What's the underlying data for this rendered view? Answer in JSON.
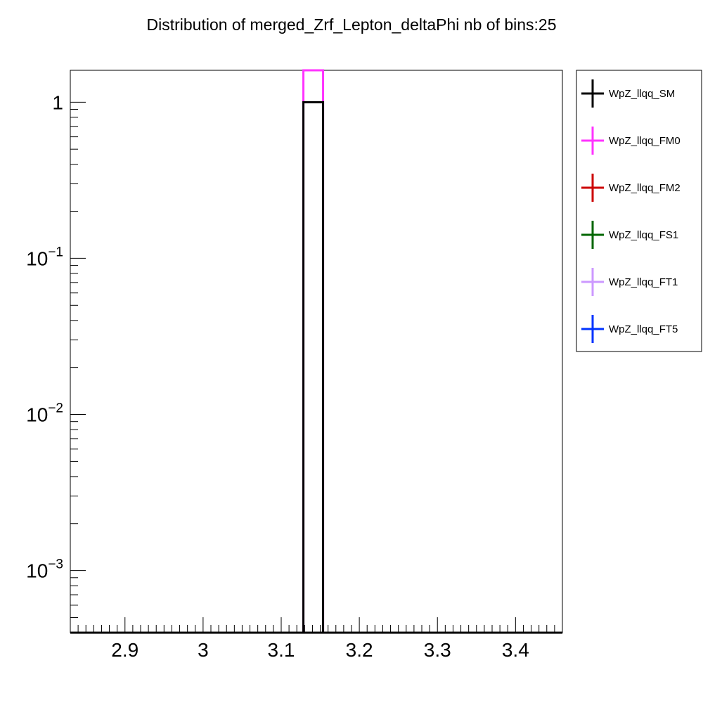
{
  "chart_data": {
    "type": "bar",
    "title": "Distribution of merged_Zrf_Lepton_deltaPhi nb of bins:25",
    "xlabel": "",
    "ylabel": "",
    "x_range": [
      2.83,
      3.46
    ],
    "y_scale": "log",
    "y_range": [
      0.0004,
      1.6
    ],
    "x_ticks": [
      2.9,
      3.0,
      3.1,
      3.2,
      3.3,
      3.4
    ],
    "x_tick_labels": [
      "2.9",
      "3",
      "3.1",
      "3.2",
      "3.3",
      "3.4"
    ],
    "y_ticks": [
      {
        "value": 1,
        "base": "1",
        "exp": ""
      },
      {
        "value": 0.1,
        "base": "10",
        "exp": "−1"
      },
      {
        "value": 0.01,
        "base": "10",
        "exp": "−2"
      },
      {
        "value": 0.001,
        "base": "10",
        "exp": "−3"
      }
    ],
    "bin": {
      "low": 3.1284,
      "high": 3.1536
    },
    "grid": false,
    "legend_position": "right",
    "series": [
      {
        "name": "WpZ_llqq_SM",
        "color": "#000000",
        "value": 1.0
      },
      {
        "name": "WpZ_llqq_FM0",
        "color": "#ff33ff",
        "value": 1.6
      },
      {
        "name": "WpZ_llqq_FM2",
        "color": "#cc0000",
        "value": null
      },
      {
        "name": "WpZ_llqq_FS1",
        "color": "#006600",
        "value": null
      },
      {
        "name": "WpZ_llqq_FT1",
        "color": "#cc99ff",
        "value": null
      },
      {
        "name": "WpZ_llqq_FT5",
        "color": "#0033ff",
        "value": null
      }
    ]
  }
}
